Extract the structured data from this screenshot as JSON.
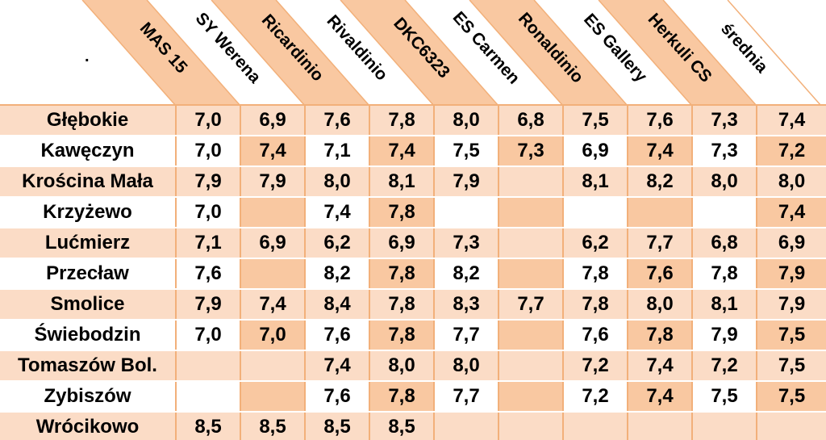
{
  "header": {
    "corner_mark": ".",
    "columns": [
      "MAS 15",
      "SY Werena",
      "Ricardinio",
      "Rivaldinio",
      "DKC6323",
      "ES Carmen",
      "Ronaldinio",
      "ES Gallery",
      "Herkuli CS",
      "średnia"
    ]
  },
  "rows": [
    {
      "name": "Głębokie",
      "values": [
        "7,0",
        "6,9",
        "7,6",
        "7,8",
        "8,0",
        "6,8",
        "7,5",
        "7,6",
        "7,3",
        "7,4"
      ]
    },
    {
      "name": "Kawęczyn",
      "values": [
        "7,0",
        "7,4",
        "7,1",
        "7,4",
        "7,5",
        "7,3",
        "6,9",
        "7,4",
        "7,3",
        "7,2"
      ]
    },
    {
      "name": "Krościna Mała",
      "values": [
        "7,9",
        "7,9",
        "8,0",
        "8,1",
        "7,9",
        "",
        "8,1",
        "8,2",
        "8,0",
        "8,0"
      ]
    },
    {
      "name": "Krzyżewo",
      "values": [
        "7,0",
        "",
        "7,4",
        "7,8",
        "",
        "",
        "",
        "",
        "",
        "7,4"
      ]
    },
    {
      "name": "Lućmierz",
      "values": [
        "7,1",
        "6,9",
        "6,2",
        "6,9",
        "7,3",
        "",
        "6,2",
        "7,7",
        "6,8",
        "6,9"
      ]
    },
    {
      "name": "Przecław",
      "values": [
        "7,6",
        "",
        "8,2",
        "7,8",
        "8,2",
        "",
        "7,8",
        "7,6",
        "7,8",
        "7,9"
      ]
    },
    {
      "name": "Smolice",
      "values": [
        "7,9",
        "7,4",
        "8,4",
        "7,8",
        "8,3",
        "7,7",
        "7,8",
        "8,0",
        "8,1",
        "7,9"
      ]
    },
    {
      "name": "Świebodzin",
      "values": [
        "7,0",
        "7,0",
        "7,6",
        "7,8",
        "7,7",
        "",
        "7,6",
        "7,8",
        "7,9",
        "7,5"
      ]
    },
    {
      "name": "Tomaszów Bol.",
      "values": [
        "",
        "",
        "7,4",
        "8,0",
        "8,0",
        "",
        "7,2",
        "7,4",
        "7,2",
        "7,5"
      ]
    },
    {
      "name": "Zybiszów",
      "values": [
        "",
        "",
        "7,6",
        "7,8",
        "7,7",
        "",
        "7,2",
        "7,4",
        "7,5",
        "7,5"
      ]
    },
    {
      "name": "Wrócikowo",
      "values": [
        "8,5",
        "8,5",
        "8,5",
        "8,5",
        "",
        "",
        "",
        "",
        "",
        ""
      ]
    }
  ],
  "colors": {
    "row_tint": "#fbdcc6",
    "column_tint": "#f9c8a1",
    "header_fill": "#f9c8a1",
    "line": "#f2b07a"
  }
}
